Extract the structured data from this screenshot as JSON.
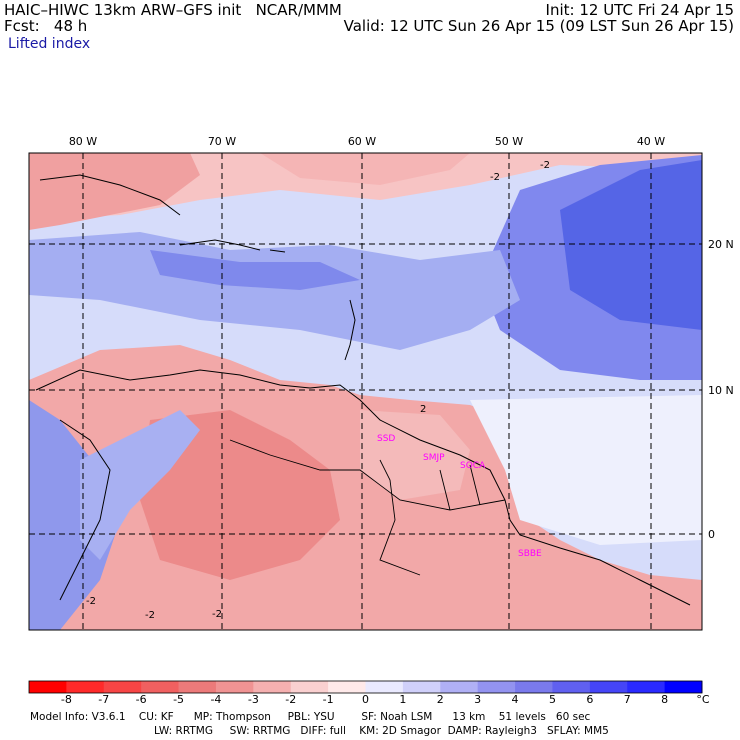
{
  "header": {
    "model_title": "HAIC–HIWC 13km ARW–GFS init   NCAR/MMM",
    "fcst_label": "Fcst:   48 h",
    "init": "Init: 12 UTC Fri 24 Apr 15",
    "valid": "Valid: 12 UTC Sun 26 Apr 15 (09 LST Sun 26 Apr 15)",
    "field": "Lifted index"
  },
  "axes": {
    "lon_labels": [
      "80 W",
      "70 W",
      "60 W",
      "50 W",
      "40 W"
    ],
    "lat_labels": [
      "20 N",
      "10 N",
      "0"
    ]
  },
  "contour_labels": [
    "-2",
    "-2",
    "2",
    "-2",
    "-2",
    "-2"
  ],
  "stations": [
    "SSD",
    "SMJP",
    "SOCA",
    "SBBE"
  ],
  "colorbar": {
    "ticks": [
      "-8",
      "-7",
      "-6",
      "-5",
      "-4",
      "-3",
      "-2",
      "-1",
      "0",
      "1",
      "2",
      "3",
      "4",
      "5",
      "6",
      "7",
      "8"
    ],
    "unit": "°C",
    "colors": [
      "#ff0000",
      "#ff2a2a",
      "#f74545",
      "#f06060",
      "#ec7a7a",
      "#f09393",
      "#f5b0b0",
      "#fad0d0",
      "#ffeaea",
      "#eaeaff",
      "#d0d0fa",
      "#b0b0f5",
      "#9393f0",
      "#7a7aec",
      "#6060f0",
      "#4545f7",
      "#2a2aff",
      "#0000ff"
    ]
  },
  "footer": {
    "line1": "Model Info: V3.6.1    CU: KF      MP: Thompson     PBL: YSU        SF: Noah LSM      13 km    51 levels   60 sec",
    "line2": "LW: RRTMG     SW: RRTMG   DIFF: full    KM: 2D Smagor  DAMP: Rayleigh3   SFLAY: MM5"
  },
  "colors": {
    "ocean_blue": "#b9c4f5",
    "deep_blue": "#4f5fe8",
    "land_red": "#f3a0a0",
    "station_magenta": "#ff00ff",
    "grid": "#000000"
  }
}
